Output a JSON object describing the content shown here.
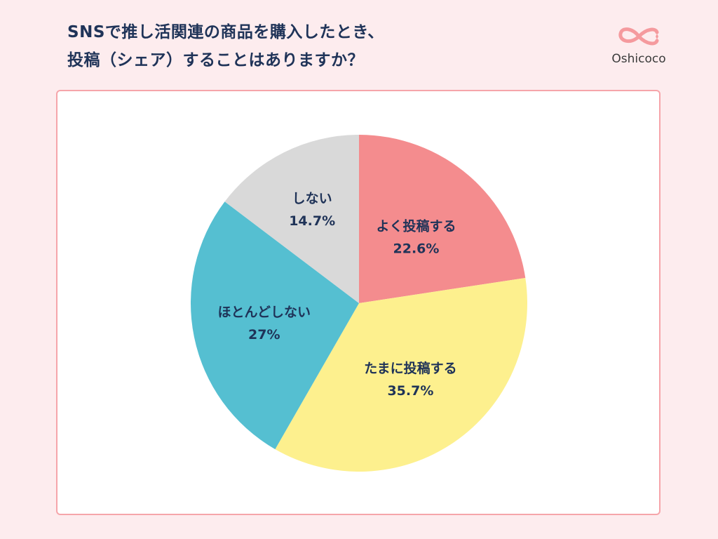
{
  "title_lines": [
    "SNSで推し活関連の商品を購入したとき、",
    "投稿（シェア）することはありますか？"
  ],
  "logo": {
    "text": "Oshicoco",
    "color": "#F59A9E"
  },
  "chart_data": {
    "type": "pie",
    "title": "SNSで推し活関連の商品を購入したとき、投稿（シェア）することはありますか？",
    "start": "top",
    "direction": "clockwise",
    "categories": [
      "よく投稿する",
      "たまに投稿する",
      "ほとんどしない",
      "しない"
    ],
    "values": [
      22.6,
      35.7,
      27,
      14.7
    ],
    "value_labels": [
      "22.6%",
      "35.7%",
      "27%",
      "14.7%"
    ],
    "colors": [
      "#F48C8E",
      "#FDF08E",
      "#55BFD1",
      "#D9D9D9"
    ],
    "legend": "none"
  }
}
